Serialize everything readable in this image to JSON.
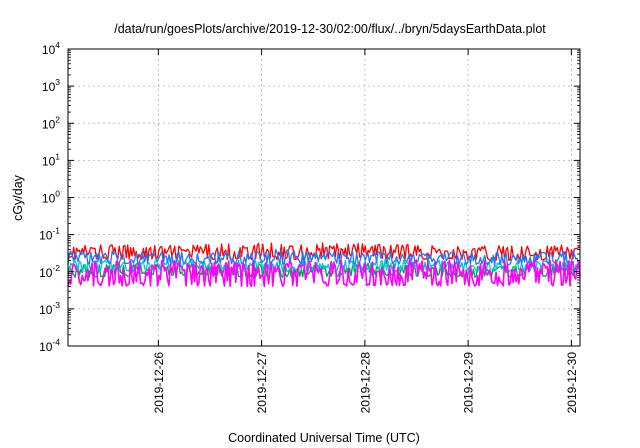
{
  "chart_data": {
    "type": "line",
    "title": "/data/run/goesPlots/archive/2019-12-30/02:00/flux/../bryn/5daysEarthData.plot",
    "xlabel": "Coordinated Universal Time (UTC)",
    "ylabel": "cGy/day",
    "yscale": "log",
    "ylim": [
      0.0001,
      10000
    ],
    "xlim": [
      "2019-12-25T03:00",
      "2019-12-30T02:00"
    ],
    "grid": true,
    "y_ticks": [
      {
        "base": "10",
        "exp": "-4"
      },
      {
        "base": "10",
        "exp": "-3"
      },
      {
        "base": "10",
        "exp": "-2"
      },
      {
        "base": "10",
        "exp": "-1"
      },
      {
        "base": "10",
        "exp": "0"
      },
      {
        "base": "10",
        "exp": "1"
      },
      {
        "base": "10",
        "exp": "2"
      },
      {
        "base": "10",
        "exp": "3"
      },
      {
        "base": "10",
        "exp": "4"
      }
    ],
    "x_ticks": [
      {
        "label": "2019-12-26",
        "t": "2019-12-26T00:00"
      },
      {
        "label": "2019-12-27",
        "t": "2019-12-27T00:00"
      },
      {
        "label": "2019-12-28",
        "t": "2019-12-28T00:00"
      },
      {
        "label": "2019-12-29",
        "t": "2019-12-29T00:00"
      },
      {
        "label": "2019-12-30",
        "t": "2019-12-30T00:00"
      }
    ],
    "series": [
      {
        "color": "#ff0000",
        "ranges": [
          [
            "2019-12-25T03:00",
            0.021,
            0.055
          ],
          [
            "2019-12-26T03:00",
            0.022,
            0.052
          ],
          [
            "2019-12-27T03:00",
            0.021,
            0.062
          ],
          [
            "2019-12-28T03:00",
            0.023,
            0.058
          ],
          [
            "2019-12-29T03:00",
            0.02,
            0.05
          ],
          [
            "2019-12-30T02:00",
            0.021,
            0.056
          ]
        ]
      },
      {
        "color": "#00a050",
        "ranges": [
          [
            "2019-12-25T03:00",
            0.007,
            0.016
          ],
          [
            "2019-12-26T03:00",
            0.008,
            0.017
          ],
          [
            "2019-12-27T03:00",
            0.007,
            0.016
          ],
          [
            "2019-12-28T03:00",
            0.008,
            0.018
          ],
          [
            "2019-12-29T03:00",
            0.007,
            0.015
          ],
          [
            "2019-12-30T02:00",
            0.008,
            0.016
          ]
        ]
      },
      {
        "color": "#00c8c8",
        "ranges": [
          [
            "2019-12-25T03:00",
            0.01,
            0.02
          ],
          [
            "2019-12-26T03:00",
            0.011,
            0.021
          ],
          [
            "2019-12-27T03:00",
            0.01,
            0.02
          ],
          [
            "2019-12-28T03:00",
            0.011,
            0.022
          ],
          [
            "2019-12-29T03:00",
            0.01,
            0.019
          ],
          [
            "2019-12-30T02:00",
            0.011,
            0.02
          ]
        ]
      },
      {
        "color": "#1e78ff",
        "ranges": [
          [
            "2019-12-25T03:00",
            0.016,
            0.036
          ],
          [
            "2019-12-26T03:00",
            0.017,
            0.035
          ],
          [
            "2019-12-27T03:00",
            0.016,
            0.04
          ],
          [
            "2019-12-28T03:00",
            0.017,
            0.037
          ],
          [
            "2019-12-29T03:00",
            0.015,
            0.034
          ],
          [
            "2019-12-30T02:00",
            0.016,
            0.036
          ]
        ]
      },
      {
        "color": "#ff00ff",
        "ranges": [
          [
            "2019-12-25T03:00",
            0.004,
            0.02
          ],
          [
            "2019-12-26T03:00",
            0.0042,
            0.021
          ],
          [
            "2019-12-27T03:00",
            0.004,
            0.02
          ],
          [
            "2019-12-28T03:00",
            0.0043,
            0.022
          ],
          [
            "2019-12-29T03:00",
            0.0041,
            0.02
          ],
          [
            "2019-12-30T02:00",
            0.0042,
            0.021
          ]
        ]
      }
    ]
  }
}
